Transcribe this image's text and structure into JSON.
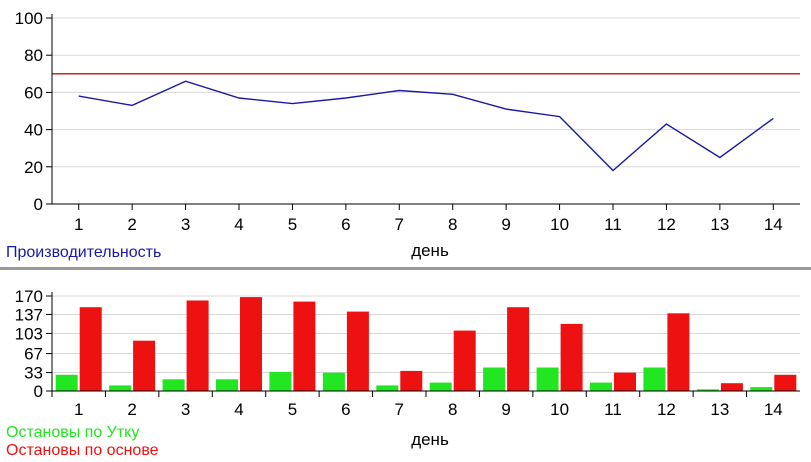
{
  "chart_data": [
    {
      "type": "line",
      "x": [
        1,
        2,
        3,
        4,
        5,
        6,
        7,
        8,
        9,
        10,
        11,
        12,
        13,
        14
      ],
      "series": [
        {
          "name": "Производительность",
          "color": "#1a1aa6",
          "values": [
            58,
            53,
            66,
            57,
            54,
            57,
            61,
            59,
            51,
            47,
            18,
            43,
            25,
            46
          ]
        }
      ],
      "reference_line": {
        "value": 70,
        "color": "#cc2222"
      },
      "xlabel": "день",
      "ylabel": "",
      "ylim": [
        0,
        100
      ],
      "yticks": [
        "0",
        "20",
        "40",
        "60",
        "80",
        "100"
      ],
      "xticks": [
        "1",
        "2",
        "3",
        "4",
        "5",
        "6",
        "7",
        "8",
        "9",
        "10",
        "11",
        "12",
        "13",
        "14"
      ],
      "grid": true,
      "legend_position": "bottom-left"
    },
    {
      "type": "bar",
      "categories": [
        "1",
        "2",
        "3",
        "4",
        "5",
        "6",
        "7",
        "8",
        "9",
        "10",
        "11",
        "12",
        "13",
        "14"
      ],
      "series": [
        {
          "name": "Остановы по Утку",
          "color": "#22e622",
          "values": [
            29,
            10,
            21,
            21,
            34,
            33,
            10,
            15,
            42,
            42,
            15,
            42,
            3,
            7
          ]
        },
        {
          "name": "Остановы по основе",
          "color": "#ee1111",
          "values": [
            150,
            90,
            162,
            168,
            160,
            142,
            36,
            108,
            150,
            120,
            33,
            139,
            14,
            29
          ]
        }
      ],
      "xlabel": "день",
      "ylabel": "",
      "ylim": [
        0,
        170
      ],
      "yticks": [
        "0",
        "33",
        "67",
        "103",
        "137",
        "170"
      ],
      "grid": true,
      "legend_position": "bottom-left"
    }
  ]
}
